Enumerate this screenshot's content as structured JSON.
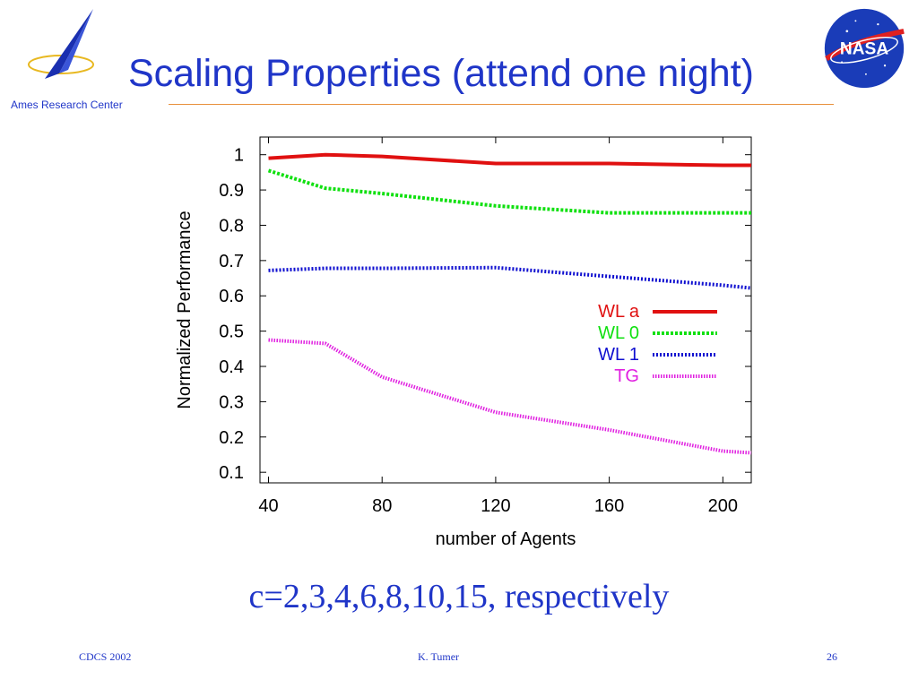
{
  "slide": {
    "title": "Scaling Properties (attend one night)",
    "org": "Ames Research Center",
    "subtitle": "c=2,3,4,6,8,10,15, respectively",
    "footer": {
      "left": "CDCS 2002",
      "center": "K. Tumer",
      "right": "26"
    },
    "logo_text": "NASA"
  },
  "colors": {
    "title": "#1f35c8",
    "rule": "#e8903c"
  },
  "chart_data": {
    "type": "line",
    "xlabel": "number of Agents",
    "ylabel": "Normalized Performance",
    "xlim": [
      37,
      210
    ],
    "ylim": [
      0.07,
      1.05
    ],
    "xticks": [
      40,
      80,
      120,
      160,
      200
    ],
    "yticks": [
      0.1,
      0.2,
      0.3,
      0.4,
      0.5,
      0.6,
      0.7,
      0.8,
      0.9,
      1
    ],
    "ytick_labels": [
      "0.1",
      "0.2",
      "0.3",
      "0.4",
      "0.5",
      "0.6",
      "0.7",
      "0.8",
      "0.9",
      "1"
    ],
    "grid": false,
    "legend_position": "center-right",
    "x": [
      40,
      60,
      80,
      120,
      160,
      200,
      210
    ],
    "series": [
      {
        "name": "WL a",
        "color": "#e01010",
        "dash": "",
        "values": [
          0.99,
          1.0,
          0.995,
          0.975,
          0.975,
          0.97,
          0.97
        ]
      },
      {
        "name": "WL 0",
        "color": "#10e010",
        "dash": "3,2",
        "values": [
          0.955,
          0.905,
          0.89,
          0.855,
          0.835,
          0.835,
          0.835
        ]
      },
      {
        "name": "WL 1",
        "color": "#1010d0",
        "dash": "2,2",
        "values": [
          0.672,
          0.678,
          0.678,
          0.68,
          0.655,
          0.63,
          0.622
        ]
      },
      {
        "name": "TG",
        "color": "#e020e0",
        "dash": "1.5,1.5",
        "values": [
          0.475,
          0.465,
          0.37,
          0.27,
          0.22,
          0.16,
          0.155
        ]
      }
    ]
  }
}
